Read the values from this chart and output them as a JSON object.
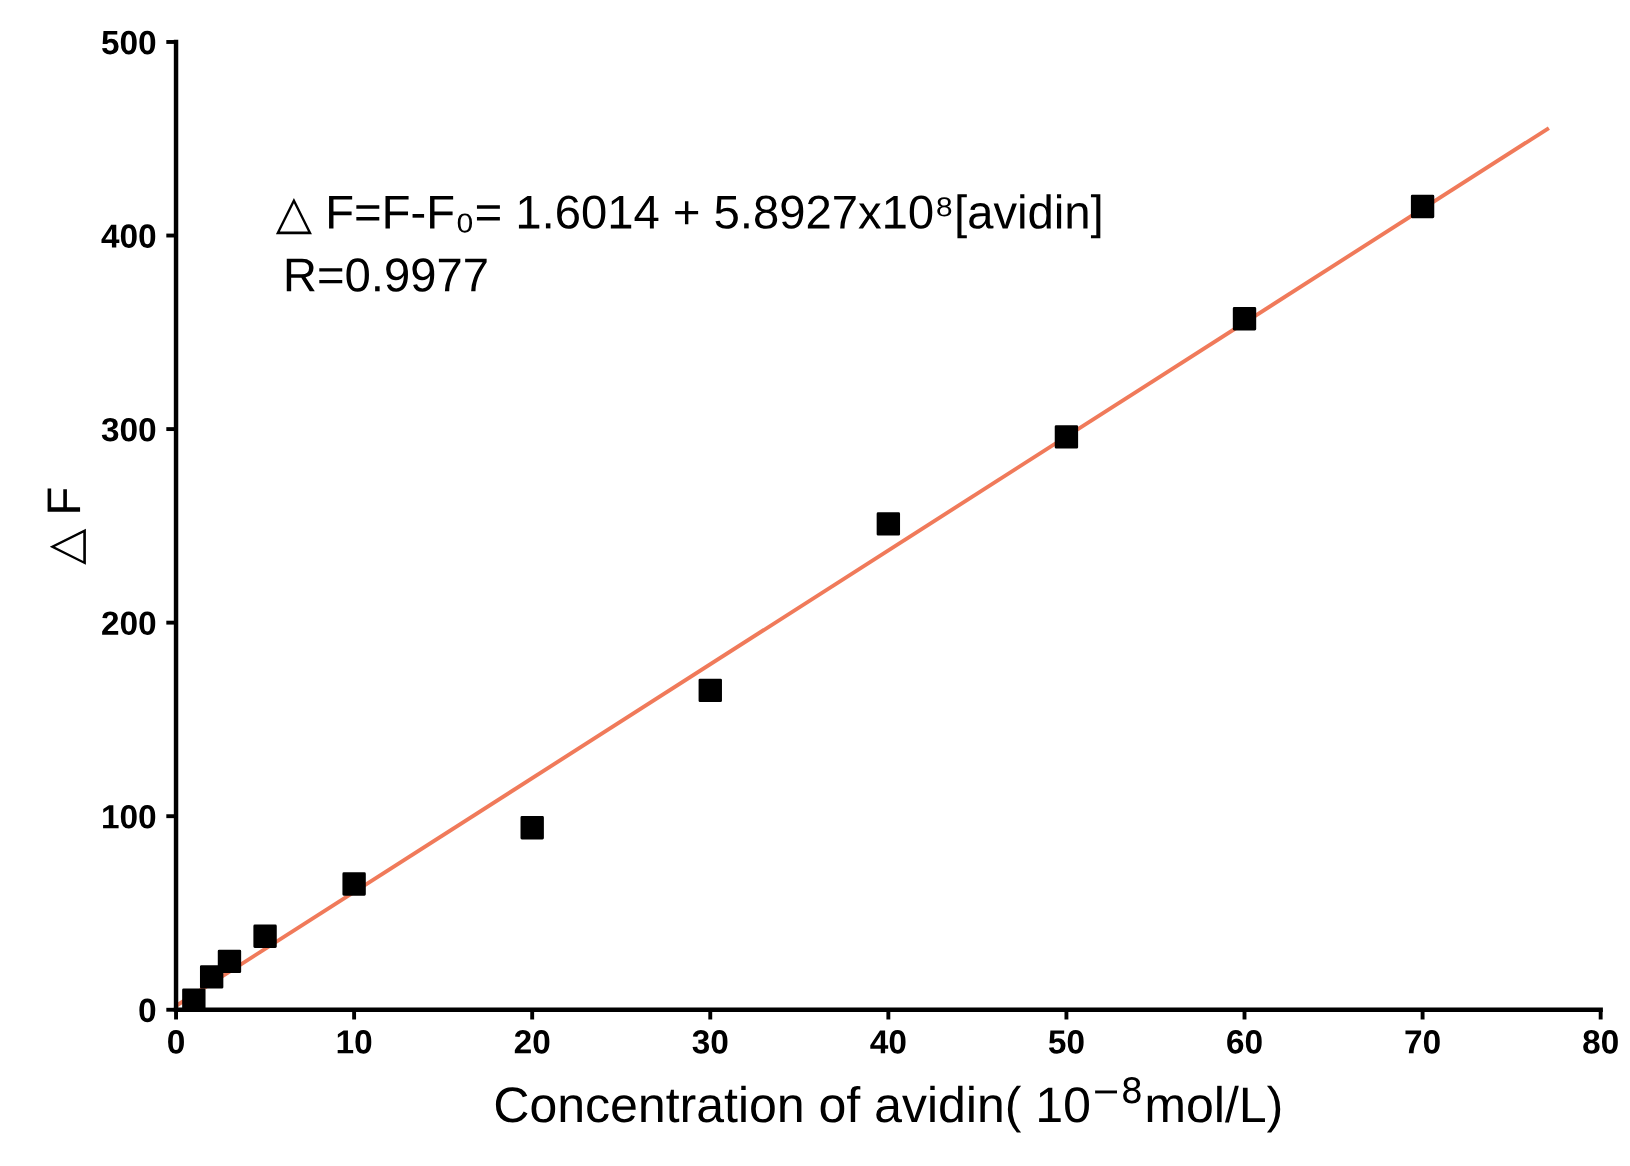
{
  "chart_data": {
    "type": "scatter",
    "xlabel": "Concentration of avidin( 10$^{−8}$mol/L)",
    "ylabel": "△ F",
    "annotations": [
      "△ F=F-F₀= 1.6014 + 5.8927x10⁸[avidin]",
      "R=0.9977"
    ],
    "x": [
      1,
      2,
      3,
      5,
      10,
      20,
      30,
      40,
      50,
      60,
      70
    ],
    "series": [
      {
        "color": "#000000",
        "marker": "square",
        "values": [
          5,
          17,
          25,
          38,
          65,
          94,
          165,
          251,
          296,
          357,
          415
        ]
      },
      {
        "type": "line",
        "color": "#f07a5a",
        "marker": "none",
        "line_style": "solid",
        "x": [
          0,
          77
        ],
        "values": [
          2,
          455
        ]
      }
    ],
    "xlim": [
      0,
      80
    ],
    "ylim": [
      0,
      500
    ],
    "xticks": [
      0,
      10,
      20,
      30,
      40,
      50,
      60,
      70,
      80
    ],
    "yticks": [
      0,
      100,
      200,
      300,
      400,
      500
    ],
    "grid": false,
    "legend": false
  }
}
